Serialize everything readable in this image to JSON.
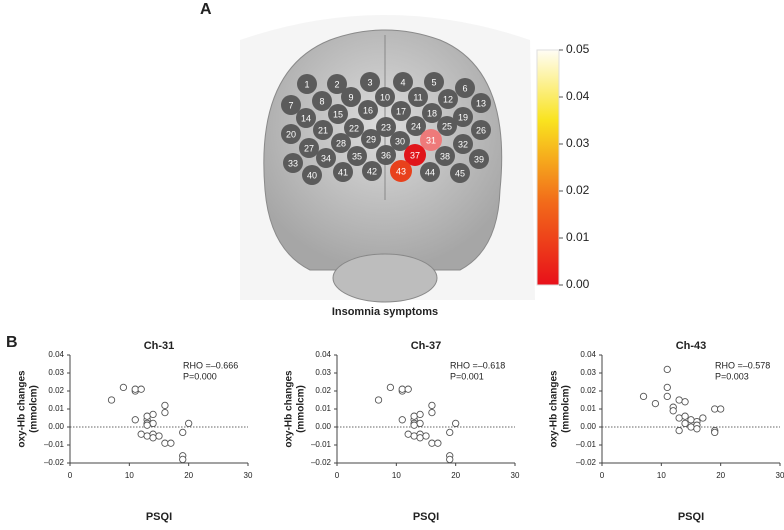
{
  "panel_a": {
    "label": "A",
    "title": "Insomnia symptoms",
    "channel_color": "#5b5b5b",
    "channels": [
      {
        "label": "1"
      },
      {
        "label": "2"
      },
      {
        "label": "3"
      },
      {
        "label": "4"
      },
      {
        "label": "5"
      },
      {
        "label": "6"
      },
      {
        "label": "7"
      },
      {
        "label": "8"
      },
      {
        "label": "9"
      },
      {
        "label": "10"
      },
      {
        "label": "11"
      },
      {
        "label": "12"
      },
      {
        "label": "13"
      },
      {
        "label": "14"
      },
      {
        "label": "15"
      },
      {
        "label": "16"
      },
      {
        "label": "17"
      },
      {
        "label": "18"
      },
      {
        "label": "19"
      },
      {
        "label": "20"
      },
      {
        "label": "21"
      },
      {
        "label": "22"
      },
      {
        "label": "23"
      },
      {
        "label": "24"
      },
      {
        "label": "25"
      },
      {
        "label": "26"
      },
      {
        "label": "27"
      },
      {
        "label": "28"
      },
      {
        "label": "29"
      },
      {
        "label": "30"
      },
      {
        "label": "31",
        "color": "#ee7a7a"
      },
      {
        "label": "32"
      },
      {
        "label": "33"
      },
      {
        "label": "34"
      },
      {
        "label": "35"
      },
      {
        "label": "36"
      },
      {
        "label": "37",
        "color": "#e0151a"
      },
      {
        "label": "38"
      },
      {
        "label": "39"
      },
      {
        "label": "40"
      },
      {
        "label": "41"
      },
      {
        "label": "42"
      },
      {
        "label": "43",
        "color": "#e8411c"
      },
      {
        "label": "44"
      },
      {
        "label": "45"
      }
    ],
    "colorbar": {
      "ylim": [
        0,
        0.05
      ],
      "yticks": [
        {
          "value": 0,
          "label": "0.00"
        },
        0.01,
        0.02,
        0.03,
        0.04,
        0.05
      ]
    }
  },
  "panel_b_label": "B",
  "chart_data": [
    {
      "type": "scatter",
      "title": "Ch-31",
      "xlabel": "PSQI",
      "ylabel": [
        "oxy-Hb changes",
        "(mmolcm)"
      ],
      "annotations": [
        "RHO =–0.666",
        "P=0.000"
      ],
      "x": [
        7,
        9,
        11,
        11,
        12,
        11,
        13,
        13,
        14,
        13,
        14,
        13,
        12,
        13,
        14,
        14,
        15,
        16,
        16,
        16,
        17,
        19,
        19,
        19,
        20
      ],
      "y": [
        0.015,
        0.022,
        0.02,
        0.021,
        0.021,
        0.004,
        0.004,
        0.006,
        0.007,
        0.002,
        0.002,
        0.001,
        -0.004,
        -0.005,
        -0.004,
        -0.006,
        -0.005,
        0.012,
        0.008,
        -0.009,
        -0.009,
        -0.003,
        -0.016,
        -0.018,
        0.002
      ],
      "xlim": [
        0,
        30
      ],
      "xticks": [
        0,
        10,
        20,
        30
      ],
      "ylim": [
        -0.02,
        0.04
      ],
      "yticks": [
        {
          "value": -0.02,
          "label": "–0.02"
        },
        {
          "value": -0.01,
          "label": "–0.01"
        },
        {
          "value": 0,
          "label": "0.00"
        },
        0.01,
        0.02,
        0.03,
        0.04
      ],
      "reference_line": 0
    },
    {
      "type": "scatter",
      "title": "Ch-37",
      "xlabel": "PSQI",
      "ylabel": [
        "oxy-Hb changes",
        "(mmolcm)"
      ],
      "annotations": [
        "RHO =–0.618",
        "P=0.001"
      ],
      "x": [
        7,
        9,
        11,
        11,
        12,
        11,
        13,
        13,
        14,
        13,
        14,
        13,
        12,
        13,
        14,
        14,
        15,
        16,
        16,
        16,
        17,
        19,
        19,
        19,
        20
      ],
      "y": [
        0.015,
        0.022,
        0.02,
        0.021,
        0.021,
        0.004,
        0.004,
        0.006,
        0.007,
        0.002,
        0.002,
        0.001,
        -0.004,
        -0.005,
        -0.004,
        -0.006,
        -0.005,
        0.012,
        0.008,
        -0.009,
        -0.009,
        -0.003,
        -0.016,
        -0.018,
        0.002
      ],
      "xlim": [
        0,
        30
      ],
      "xticks": [
        0,
        10,
        20,
        30
      ],
      "ylim": [
        -0.02,
        0.04
      ],
      "yticks": [
        {
          "value": -0.02,
          "label": "–0.02"
        },
        {
          "value": -0.01,
          "label": "–0.01"
        },
        {
          "value": 0,
          "label": "0.00"
        },
        0.01,
        0.02,
        0.03,
        0.04
      ],
      "reference_line": 0
    },
    {
      "type": "scatter",
      "title": "Ch-43",
      "xlabel": "PSQI",
      "ylabel": [
        "oxy-Hb changes",
        "(mmolcm)"
      ],
      "annotations": [
        "RHO =–0.578",
        "P=0.003"
      ],
      "x": [
        7,
        9,
        11,
        11,
        11,
        12,
        12,
        13,
        13,
        14,
        14,
        13,
        14,
        15,
        15,
        16,
        16,
        17,
        19,
        20,
        19,
        19,
        16
      ],
      "y": [
        0.017,
        0.013,
        0.032,
        0.022,
        0.017,
        0.011,
        0.009,
        0.015,
        0.005,
        0.014,
        0.006,
        -0.002,
        0.002,
        0.004,
        0.0,
        0.003,
        0.001,
        0.005,
        0.01,
        0.01,
        -0.002,
        -0.003,
        -0.001
      ],
      "xlim": [
        0,
        30
      ],
      "xticks": [
        0,
        10,
        20,
        30
      ],
      "ylim": [
        -0.02,
        0.04
      ],
      "yticks": [
        {
          "value": -0.02,
          "label": "–0.02"
        },
        {
          "value": -0.01,
          "label": "–0.01"
        },
        {
          "value": 0,
          "label": "0.00"
        },
        0.01,
        0.02,
        0.03,
        0.04
      ],
      "reference_line": 0
    }
  ]
}
